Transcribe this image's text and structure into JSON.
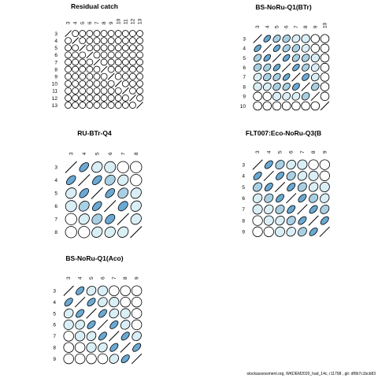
{
  "footer": "stockassessment.org, WKDEM2020_had_14c, r11798 , git: df0b7c1bcb83",
  "colors": {
    "shade_light": "#daeef6",
    "shade_mid": "#a9cfe3",
    "shade_dark": "#6aa9d3",
    "outline": "#000000",
    "empty_fill": "#ffffff"
  },
  "chart_data": [
    {
      "type": "correlation-ellipse-matrix",
      "title": "Residual catch",
      "x_labels": [
        "3",
        "4",
        "5",
        "6",
        "7",
        "8",
        "9",
        "10",
        "11",
        "12",
        "13"
      ],
      "y_labels": [
        "3",
        "4",
        "5",
        "6",
        "7",
        "8",
        "9",
        "10",
        "11",
        "12",
        "13"
      ],
      "upper_triangle": true,
      "correlations": [
        [
          0,
          0,
          0,
          0,
          0,
          0,
          0,
          0,
          0,
          0
        ],
        [
          0,
          0,
          0,
          0,
          0,
          0,
          0,
          0,
          0
        ],
        [
          0,
          0,
          0,
          0,
          0,
          0,
          0,
          0
        ],
        [
          0,
          0,
          0,
          0,
          0,
          0,
          0
        ],
        [
          0,
          0,
          0,
          0,
          0,
          0
        ],
        [
          0,
          0,
          0,
          0,
          0
        ],
        [
          0,
          0,
          0,
          0
        ],
        [
          0,
          0,
          0
        ],
        [
          0,
          0
        ],
        [
          0
        ]
      ]
    },
    {
      "type": "correlation-ellipse-matrix",
      "title": "BS-NoRu-Q1(BTr)",
      "x_labels": [
        "3",
        "4",
        "5",
        "6",
        "7",
        "8",
        "9",
        "10"
      ],
      "y_labels": [
        "3",
        "4",
        "5",
        "6",
        "7",
        "8",
        "9",
        "10"
      ],
      "upper_triangle": true,
      "correlations": [
        [
          0.7,
          0.5,
          0.4,
          0.3,
          0.1,
          0.0,
          0.0
        ],
        [
          0.7,
          0.5,
          0.4,
          0.3,
          0.0,
          0.0
        ],
        [
          0.7,
          0.5,
          0.4,
          0.1,
          0.0
        ],
        [
          0.7,
          0.5,
          0.3,
          0.0
        ],
        [
          0.6,
          0.3,
          0.0
        ],
        [
          0.4,
          0.0
        ],
        [
          0.0
        ]
      ]
    },
    {
      "type": "correlation-ellipse-matrix",
      "title": "RU-BTr-Q4",
      "x_labels": [
        "3",
        "4",
        "5",
        "6",
        "7",
        "8"
      ],
      "y_labels": [
        "3",
        "4",
        "5",
        "6",
        "7",
        "8"
      ],
      "upper_triangle": true,
      "correlations": [
        [
          0.7,
          0.3,
          0.1,
          0.0,
          0.0
        ],
        [
          0.7,
          0.4,
          0.3,
          0.0
        ],
        [
          0.7,
          0.4,
          0.3
        ],
        [
          0.6,
          0.3
        ],
        [
          0.3
        ]
      ]
    },
    {
      "type": "correlation-ellipse-matrix",
      "title": "FLT007:Eco-NoRu-Q3(B",
      "x_labels": [
        "3",
        "4",
        "5",
        "6",
        "7",
        "8",
        "9"
      ],
      "y_labels": [
        "3",
        "4",
        "5",
        "6",
        "7",
        "8",
        "9"
      ],
      "upper_triangle": true,
      "correlations": [
        [
          0.7,
          0.4,
          0.3,
          0.1,
          0.0,
          0.0
        ],
        [
          0.7,
          0.4,
          0.3,
          0.1,
          0.0
        ],
        [
          0.7,
          0.4,
          0.3,
          0.1
        ],
        [
          0.7,
          0.4,
          0.3
        ],
        [
          0.7,
          0.4
        ],
        [
          0.7
        ]
      ]
    },
    {
      "type": "correlation-ellipse-matrix",
      "title": "BS-NoRu-Q1(Aco)",
      "x_labels": [
        "3",
        "4",
        "5",
        "6",
        "7",
        "8",
        "9"
      ],
      "y_labels": [
        "3",
        "4",
        "5",
        "6",
        "7",
        "8",
        "9"
      ],
      "upper_triangle": true,
      "correlations": [
        [
          0.7,
          0.3,
          0.1,
          0.0,
          0.0,
          0.0
        ],
        [
          0.7,
          0.3,
          0.1,
          0.0,
          0.0
        ],
        [
          0.7,
          0.3,
          0.1,
          0.0
        ],
        [
          0.7,
          0.3,
          0.0
        ],
        [
          0.7,
          0.3
        ],
        [
          0.7
        ]
      ]
    }
  ]
}
